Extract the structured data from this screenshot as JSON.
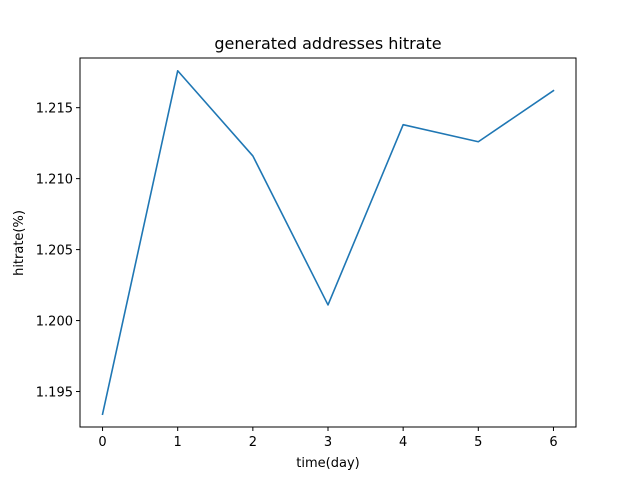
{
  "chart_data": {
    "type": "line",
    "title": "generated addresses hitrate",
    "xlabel": "time(day)",
    "ylabel": "hitrate(%)",
    "x": [
      0,
      1,
      2,
      3,
      4,
      5,
      6
    ],
    "series": [
      {
        "values": [
          1.1934,
          1.2176,
          1.2116,
          1.2011,
          1.2138,
          1.2126,
          1.2162
        ],
        "color": "#1f77b4"
      }
    ],
    "xlim": [
      -0.3,
      6.3
    ],
    "ylim": [
      1.1925,
      1.2185
    ],
    "xticks": [
      0,
      1,
      2,
      3,
      4,
      5,
      6
    ],
    "xtick_labels": [
      "0",
      "1",
      "2",
      "3",
      "4",
      "5",
      "6"
    ],
    "yticks": [
      1.195,
      1.2,
      1.205,
      1.21,
      1.215
    ],
    "ytick_labels": [
      "1.195",
      "1.200",
      "1.205",
      "1.210",
      "1.215"
    ],
    "grid": false,
    "legend": false
  }
}
